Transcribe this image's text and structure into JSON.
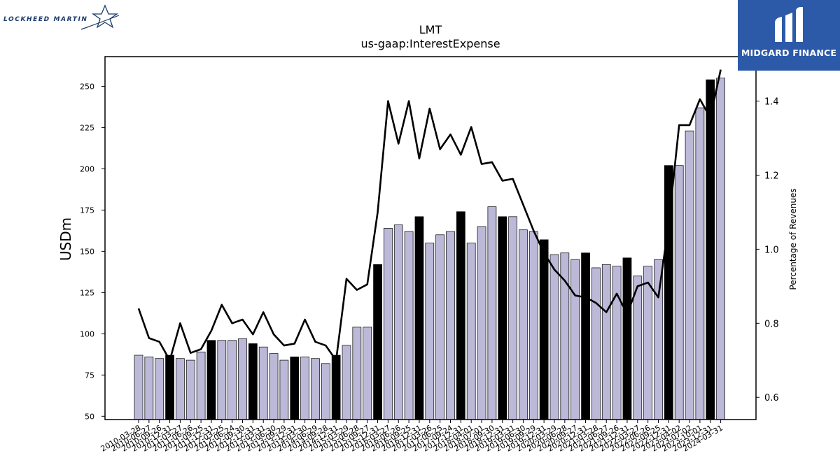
{
  "header": {
    "left_logo_text": "LOCKHEED MARTIN",
    "right_logo_text": "MIDGARD FINANCE"
  },
  "chart_data": {
    "type": "bar",
    "title": "LMT",
    "subtitle": "us-gaap:InterestExpense",
    "ylabel": "USDm",
    "y2label": "Percentage of Revenues",
    "ylim": [
      48,
      268
    ],
    "y2lim": [
      0.54,
      1.52
    ],
    "yticks": [
      50,
      75,
      100,
      125,
      150,
      175,
      200,
      225,
      250
    ],
    "y2ticks": [
      0.6,
      0.8,
      1.0,
      1.2,
      1.4
    ],
    "colors": {
      "bar": "#bcb8d8",
      "bar_q4": "#000000",
      "line": "#000000"
    },
    "categories": [
      "2010-03-28",
      "2010-06-27",
      "2010-09-26",
      "2010-12-31",
      "2011-03-27",
      "2011-06-26",
      "2011-09-25",
      "2011-12-31",
      "2012-03-25",
      "2012-06-24",
      "2012-09-30",
      "2012-12-31",
      "2013-03-31",
      "2013-06-30",
      "2013-09-29",
      "2013-12-31",
      "2014-03-30",
      "2014-06-29",
      "2014-09-28",
      "2014-12-31",
      "2015-03-29",
      "2015-06-28",
      "2015-09-27",
      "2015-12-31",
      "2016-03-27",
      "2016-06-26",
      "2016-09-25",
      "2016-12-31",
      "2017-03-26",
      "2017-06-25",
      "2017-09-24",
      "2017-12-31",
      "2018-04-01",
      "2018-07-01",
      "2018-09-30",
      "2018-12-31",
      "2019-03-31",
      "2019-06-30",
      "2019-09-29",
      "2019-12-31",
      "2020-03-29",
      "2020-06-28",
      "2020-09-27",
      "2020-12-31",
      "2021-03-28",
      "2021-06-27",
      "2021-09-26",
      "2021-12-31",
      "2022-03-27",
      "2022-06-26",
      "2022-09-25",
      "2022-12-31",
      "2023-04-02",
      "2023-07-02",
      "2023-10-01",
      "2023-12-31",
      "2024-03-31"
    ],
    "values": [
      87,
      86,
      85,
      87,
      85,
      84,
      89,
      96,
      96,
      96,
      97,
      94,
      92,
      88,
      84,
      86,
      86,
      85,
      82,
      87,
      93,
      104,
      104,
      142,
      164,
      166,
      162,
      171,
      155,
      160,
      162,
      174,
      155,
      165,
      177,
      171,
      171,
      163,
      162,
      157,
      148,
      149,
      145,
      149,
      140,
      142,
      141,
      146,
      135,
      141,
      145,
      202,
      202,
      223,
      237,
      254,
      255
    ],
    "highlight": [
      false,
      false,
      false,
      true,
      false,
      false,
      false,
      true,
      false,
      false,
      false,
      true,
      false,
      false,
      false,
      true,
      false,
      false,
      false,
      true,
      false,
      false,
      false,
      true,
      false,
      false,
      false,
      true,
      false,
      false,
      false,
      true,
      false,
      false,
      false,
      true,
      false,
      false,
      false,
      true,
      false,
      false,
      false,
      true,
      false,
      false,
      false,
      true,
      false,
      false,
      false,
      true,
      false,
      false,
      false,
      true,
      false
    ],
    "line_series": {
      "name": "Percentage of Revenues",
      "values": [
        0.84,
        0.76,
        0.75,
        0.7,
        0.8,
        0.72,
        0.73,
        0.78,
        0.85,
        0.8,
        0.81,
        0.77,
        0.83,
        0.77,
        0.74,
        0.745,
        0.81,
        0.75,
        0.74,
        0.7,
        0.92,
        0.89,
        0.905,
        1.1,
        1.4,
        1.285,
        1.4,
        1.245,
        1.38,
        1.27,
        1.31,
        1.255,
        1.33,
        1.23,
        1.235,
        1.185,
        1.19,
        1.12,
        1.05,
        0.99,
        0.945,
        0.915,
        0.875,
        0.87,
        0.855,
        0.83,
        0.88,
        0.825,
        0.9,
        0.91,
        0.87,
        1.07,
        1.335,
        1.335,
        1.405,
        1.355,
        1.485
      ]
    }
  }
}
